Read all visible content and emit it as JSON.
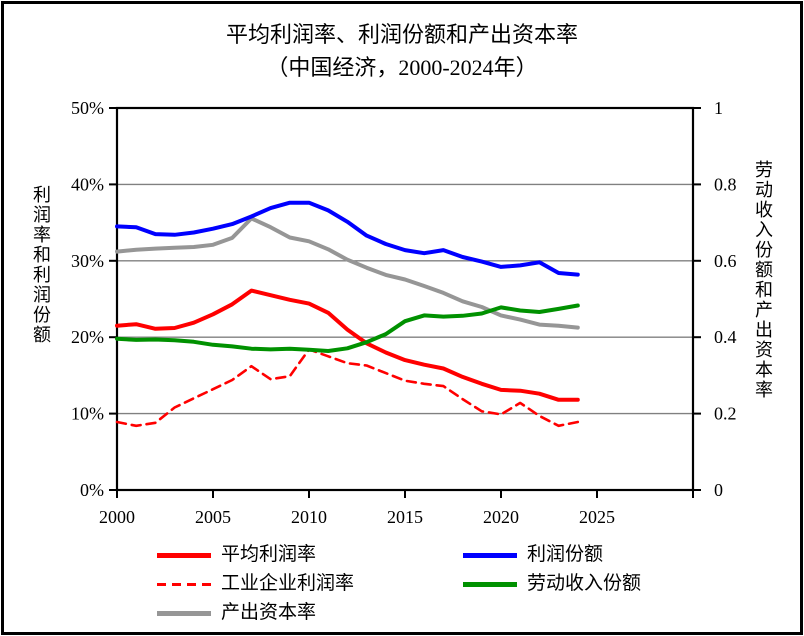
{
  "title": {
    "line1": "平均利润率、利润份额和产出资本率",
    "line2": "（中国经济，2000-2024年）"
  },
  "axes": {
    "x": {
      "tick_values": [
        2000,
        2005,
        2010,
        2015,
        2020,
        2025,
        2030
      ],
      "tick_labels": [
        "2000",
        "2005",
        "2010",
        "2015",
        "2020",
        "2025",
        ""
      ],
      "min": 2000,
      "max": 2030
    },
    "y_left": {
      "title": "利润率和利润份额",
      "tick_values": [
        0,
        10,
        20,
        30,
        40,
        50
      ],
      "tick_labels": [
        "0%",
        "10%",
        "20%",
        "30%",
        "40%",
        "50%"
      ],
      "min_pct": 0,
      "max_pct": 50
    },
    "y_right": {
      "title": "劳动收入份额和产出资本率",
      "tick_values": [
        0,
        0.2,
        0.4,
        0.6,
        0.8,
        1
      ],
      "tick_labels": [
        "0",
        "0.2",
        "0.4",
        "0.6",
        "0.8",
        "1"
      ],
      "min": 0,
      "max": 1
    }
  },
  "chart_data": {
    "type": "line",
    "title": "平均利润率、利润份额和产出资本率（中国经济，2000-2024年）",
    "grid": true,
    "gridline_color": "#808080",
    "legend_position": "bottom",
    "x": [
      2000,
      2001,
      2002,
      2003,
      2004,
      2005,
      2006,
      2007,
      2008,
      2009,
      2010,
      2011,
      2012,
      2013,
      2014,
      2015,
      2016,
      2017,
      2018,
      2019,
      2020,
      2021,
      2022,
      2023,
      2024
    ],
    "series": [
      {
        "name": "平均利润率",
        "axis": "left",
        "unit": "percent",
        "color": "#FF0000",
        "dash": "solid",
        "values": [
          21.5,
          21.7,
          21.1,
          21.2,
          21.9,
          23.0,
          24.3,
          26.1,
          25.5,
          24.9,
          24.4,
          23.2,
          21.0,
          19.2,
          18.0,
          17.0,
          16.4,
          15.9,
          14.8,
          13.9,
          13.1,
          13.0,
          12.6,
          11.8,
          11.8
        ]
      },
      {
        "name": "工业企业利润率",
        "axis": "left",
        "unit": "percent",
        "color": "#FF0000",
        "dash": "dashed",
        "values": [
          8.9,
          8.4,
          8.8,
          10.8,
          12.0,
          13.2,
          14.4,
          16.2,
          14.5,
          14.9,
          18.4,
          17.5,
          16.6,
          16.3,
          15.3,
          14.3,
          13.9,
          13.6,
          11.9,
          10.3,
          9.9,
          11.4,
          9.7,
          8.4,
          8.9
        ]
      },
      {
        "name": "产出资本率",
        "axis": "right",
        "unit": "ratio",
        "color": "#969696",
        "dash": "solid",
        "values": [
          0.624,
          0.629,
          0.632,
          0.634,
          0.636,
          0.642,
          0.66,
          0.711,
          0.688,
          0.661,
          0.651,
          0.63,
          0.603,
          0.582,
          0.563,
          0.551,
          0.534,
          0.516,
          0.494,
          0.479,
          0.457,
          0.446,
          0.433,
          0.43,
          0.425
        ]
      },
      {
        "name": "利润份额",
        "axis": "left",
        "unit": "percent",
        "color": "#0000FF",
        "dash": "solid",
        "values": [
          34.5,
          34.4,
          33.5,
          33.4,
          33.7,
          34.2,
          34.8,
          35.8,
          36.9,
          37.6,
          37.6,
          36.6,
          35.1,
          33.3,
          32.2,
          31.4,
          31.0,
          31.4,
          30.5,
          29.9,
          29.2,
          29.4,
          29.8,
          28.4,
          28.2
        ]
      },
      {
        "name": "劳动收入份额",
        "axis": "right",
        "unit": "ratio",
        "color": "#009100",
        "dash": "solid",
        "values": [
          0.396,
          0.393,
          0.394,
          0.392,
          0.388,
          0.38,
          0.376,
          0.37,
          0.368,
          0.37,
          0.367,
          0.364,
          0.371,
          0.387,
          0.408,
          0.442,
          0.457,
          0.454,
          0.456,
          0.462,
          0.478,
          0.47,
          0.466,
          0.474,
          0.483
        ]
      }
    ]
  },
  "legend": {
    "items": [
      {
        "label": "平均利润率",
        "series": 0
      },
      {
        "label": "工业企业利润率",
        "series": 1
      },
      {
        "label": "产出资本率",
        "series": 2
      },
      {
        "label": "利润份额",
        "series": 3
      },
      {
        "label": "劳动收入份额",
        "series": 4
      }
    ]
  }
}
